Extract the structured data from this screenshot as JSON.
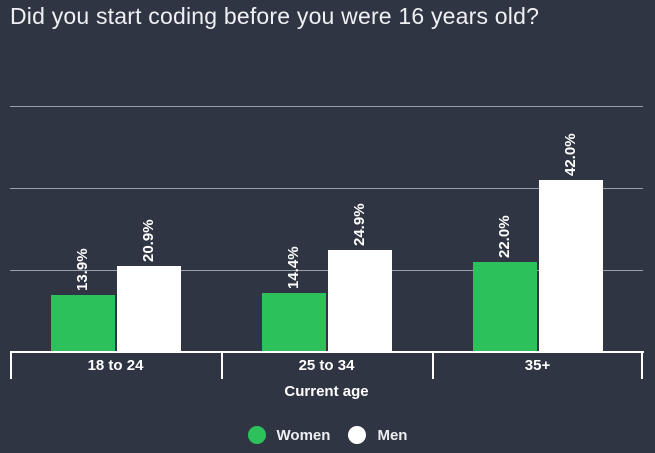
{
  "title": "Did you start coding before you were 16 years old?",
  "chart_data": {
    "type": "bar",
    "title": "Did you start coding before you were 16 years old?",
    "categories": [
      "18 to 24",
      "25 to 34",
      "35+"
    ],
    "series": [
      {
        "name": "Women",
        "color": "#2dc15c",
        "values": [
          13.9,
          14.4,
          22.0
        ],
        "value_labels": [
          "13.9%",
          "14.4%",
          "22.0%"
        ]
      },
      {
        "name": "Men",
        "color": "#ffffff",
        "values": [
          20.9,
          24.9,
          42.0
        ],
        "value_labels": [
          "20.9%",
          "24.9%",
          "42.0%"
        ]
      }
    ],
    "xlabel": "Current age",
    "ylabel": "",
    "ylim": [
      0,
      71
    ],
    "gridlines_percent": [
      20,
      40,
      60
    ],
    "grid": "on",
    "legend_position": "bottom"
  },
  "colors": {
    "background": "#2f3542",
    "gridline": "#9aa0aa",
    "axis": "#ffffff",
    "text": "#ffffff",
    "title_text": "#eef0f3",
    "women_green": "#2dc15c",
    "men_white": "#ffffff"
  }
}
